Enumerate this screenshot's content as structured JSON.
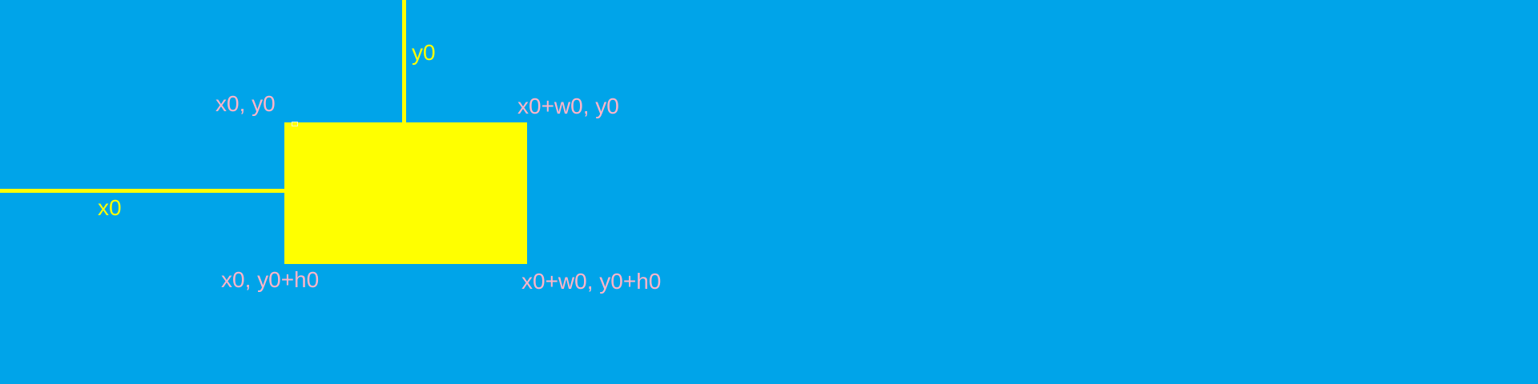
{
  "colors": {
    "background": "#00a4e9",
    "shape": "#ffff00",
    "guide_label": "#ffff00",
    "corner_label": "#ffb4c8"
  },
  "labels": {
    "x_guide": "x0",
    "y_guide": "y0",
    "top_left": "x0, y0",
    "top_right": "x0+w0, y0",
    "bottom_left": "x0, y0+h0",
    "bottom_right": "x0+w0, y0+h0"
  }
}
